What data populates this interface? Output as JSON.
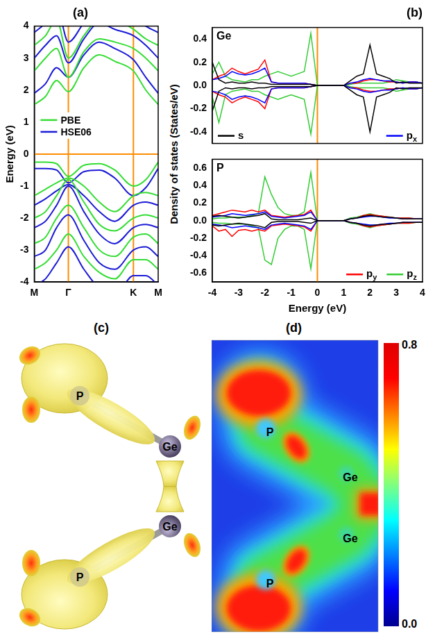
{
  "chart_data": [
    {
      "type": "line",
      "title": "(a)",
      "y_label": "Energy (eV)",
      "grid": false,
      "legend": "left",
      "x": [
        0,
        0.18,
        0.36,
        0.55,
        0.8,
        1.05,
        1.3,
        1.6,
        1.8,
        2.0
      ],
      "xlim": [
        0,
        2.0
      ],
      "xticks": [
        {
          "value": 0,
          "label": "M"
        },
        {
          "value": 0.55,
          "label": "Γ"
        },
        {
          "value": 1.6,
          "label": "K"
        },
        {
          "value": 2.0,
          "label": "M"
        }
      ],
      "ylim": [
        -4,
        4
      ],
      "yticks": [
        -4,
        -3,
        -2,
        -1,
        0,
        1,
        2,
        3,
        4
      ],
      "reference_lines": {
        "x": [
          0.55,
          1.6
        ],
        "y": [
          0
        ]
      },
      "series": [
        {
          "name": "PBE",
          "color": "#33dd33",
          "bands": [
            [
              1.55,
              1.8,
              2.3,
              1.95,
              2.7,
              3.1,
              2.9,
              2.6,
              2.0,
              1.55
            ],
            [
              2.6,
              3.0,
              3.3,
              2.4,
              3.2,
              3.6,
              3.5,
              3.3,
              3.0,
              2.6
            ],
            [
              3.4,
              3.7,
              4.2,
              3.0,
              3.7,
              4.2,
              4.2,
              3.9,
              3.6,
              3.4
            ],
            [
              -0.25,
              -0.25,
              -0.3,
              -0.7,
              -0.35,
              -0.3,
              -0.5,
              -1.0,
              -0.8,
              -0.25
            ],
            [
              -1.3,
              -1.1,
              -0.9,
              -0.75,
              -1.0,
              -1.5,
              -1.8,
              -1.3,
              -1.2,
              -1.3
            ],
            [
              -2.0,
              -1.8,
              -1.3,
              -0.8,
              -1.5,
              -2.2,
              -2.4,
              -2.0,
              -1.9,
              -2.0
            ],
            [
              -2.8,
              -2.6,
              -2.0,
              -1.6,
              -2.3,
              -3.0,
              -3.2,
              -2.6,
              -2.5,
              -2.8
            ],
            [
              -3.6,
              -3.4,
              -3.0,
              -2.5,
              -3.2,
              -3.7,
              -3.9,
              -3.3,
              -3.3,
              -3.6
            ]
          ]
        },
        {
          "name": "HSE06",
          "color": "#1a1ad6",
          "bands": [
            [
              1.9,
              2.2,
              2.7,
              2.4,
              3.1,
              3.5,
              3.3,
              2.95,
              2.4,
              1.9
            ],
            [
              3.0,
              3.4,
              3.7,
              2.85,
              3.6,
              4.1,
              3.9,
              3.7,
              3.4,
              3.0
            ],
            [
              3.8,
              4.1,
              4.6,
              3.5,
              4.1,
              4.6,
              4.6,
              4.3,
              4.0,
              3.8
            ],
            [
              -0.45,
              -0.45,
              -0.5,
              -0.9,
              -0.55,
              -0.5,
              -0.75,
              -1.3,
              -1.05,
              -0.45
            ],
            [
              -1.6,
              -1.4,
              -1.15,
              -0.95,
              -1.3,
              -1.8,
              -2.1,
              -1.6,
              -1.5,
              -1.6
            ],
            [
              -2.3,
              -2.1,
              -1.6,
              -1.0,
              -1.8,
              -2.5,
              -2.8,
              -2.3,
              -2.2,
              -2.3
            ],
            [
              -3.2,
              -3.0,
              -2.3,
              -1.9,
              -2.7,
              -3.4,
              -3.6,
              -3.0,
              -2.9,
              -3.2
            ],
            [
              -4.1,
              -3.9,
              -3.4,
              -2.9,
              -3.6,
              -4.2,
              -4.4,
              -3.8,
              -3.8,
              -4.1
            ]
          ]
        }
      ]
    },
    {
      "type": "line",
      "title": "(b)",
      "annotation": "Ge",
      "grid": false,
      "legend": "bottom",
      "tick_labels": "y",
      "x": [
        -4,
        -3.75,
        -3.5,
        -3.25,
        -3,
        -2.75,
        -2.5,
        -2.25,
        -2,
        -1.75,
        -1.5,
        -1.25,
        -1,
        -0.75,
        -0.5,
        -0.25,
        0,
        0.25,
        0.5,
        0.75,
        1,
        1.25,
        1.5,
        1.75,
        2,
        2.25,
        2.5,
        2.75,
        3,
        3.25,
        3.5,
        3.75,
        4
      ],
      "xlim": [
        -4,
        4
      ],
      "xticks": [
        -4,
        -3,
        -2,
        -1,
        0,
        1,
        2,
        3,
        4
      ],
      "ylim": [
        -0.5,
        0.5
      ],
      "yticks": [
        -0.4,
        -0.2,
        {
          "value": 0,
          "label": "0.0"
        },
        0.2,
        0.4
      ],
      "reference_lines": {
        "x": [
          0
        ]
      },
      "series": [
        {
          "name": "s",
          "color": "#000000",
          "values": [
            0.2,
            0.05,
            0.02,
            0.03,
            0.02,
            0.02,
            0.03,
            0.02,
            0.02,
            0.01,
            0.01,
            0.01,
            0.01,
            0.01,
            0.01,
            0.01,
            0,
            0,
            0,
            0,
            0,
            0.04,
            0.08,
            0.1,
            0.35,
            0.1,
            0.08,
            0.06,
            0.02,
            0.03,
            0.02,
            0.02,
            0.02
          ],
          "values_down": [
            -0.22,
            -0.05,
            -0.02,
            -0.03,
            -0.02,
            -0.02,
            -0.03,
            -0.02,
            -0.02,
            -0.01,
            -0.01,
            -0.01,
            -0.01,
            -0.01,
            -0.01,
            -0.01,
            0,
            0,
            0,
            0,
            0,
            -0.04,
            -0.08,
            -0.1,
            -0.4,
            -0.1,
            -0.08,
            -0.06,
            -0.02,
            -0.03,
            -0.02,
            -0.02,
            -0.02
          ]
        },
        {
          "name": "px",
          "color": "#0000ff",
          "values": [
            0.05,
            0.06,
            0.08,
            0.12,
            0.1,
            0.09,
            0.1,
            0.12,
            0.15,
            0.03,
            0.02,
            0.02,
            0.02,
            0.02,
            0.02,
            0.01,
            0,
            0,
            0,
            0,
            0,
            0.02,
            0.03,
            0.05,
            0.06,
            0.05,
            0.04,
            0.04,
            0.03,
            0.02,
            0.03,
            0.03,
            0.02
          ],
          "values_down": [
            -0.05,
            -0.06,
            -0.08,
            -0.12,
            -0.1,
            -0.09,
            -0.1,
            -0.12,
            -0.15,
            -0.03,
            -0.02,
            -0.02,
            -0.02,
            -0.02,
            -0.02,
            -0.01,
            0,
            0,
            0,
            0,
            0,
            -0.02,
            -0.03,
            -0.05,
            -0.06,
            -0.05,
            -0.04,
            -0.04,
            -0.03,
            -0.02,
            -0.03,
            -0.03,
            -0.02
          ]
        },
        {
          "name": "py",
          "color": "#ff0000",
          "values": [
            0.05,
            0.08,
            0.1,
            0.15,
            0.12,
            0.1,
            0.12,
            0.14,
            0.22,
            0.03,
            0.02,
            0.02,
            0.02,
            0.02,
            0.02,
            0.01,
            0,
            0,
            0,
            0,
            0,
            0.02,
            0.02,
            0.04,
            0.05,
            0.05,
            0.04,
            0.03,
            0.03,
            0.02,
            0.03,
            0.03,
            0.02
          ],
          "values_down": [
            -0.05,
            -0.08,
            -0.1,
            -0.15,
            -0.12,
            -0.1,
            -0.12,
            -0.14,
            -0.2,
            -0.03,
            -0.02,
            -0.02,
            -0.02,
            -0.02,
            -0.02,
            -0.01,
            0,
            0,
            0,
            0,
            0,
            -0.02,
            -0.02,
            -0.04,
            -0.05,
            -0.05,
            -0.04,
            -0.03,
            -0.03,
            -0.02,
            -0.03,
            -0.03,
            -0.02
          ]
        },
        {
          "name": "pz",
          "color": "#33cc33",
          "values": [
            0.1,
            0.2,
            0.08,
            0.05,
            0.04,
            0.03,
            0.05,
            0.05,
            0.08,
            0.1,
            0.12,
            0.1,
            0.08,
            0.1,
            0.12,
            0.45,
            0,
            0,
            0,
            0,
            0,
            0.01,
            0.02,
            0.02,
            0.02,
            0.02,
            0.02,
            0.03,
            0.05,
            0.04,
            0.03,
            0.03,
            0.02
          ],
          "values_down": [
            -0.1,
            -0.32,
            -0.08,
            -0.05,
            -0.04,
            -0.03,
            -0.05,
            -0.05,
            -0.08,
            -0.1,
            -0.12,
            -0.1,
            -0.08,
            -0.1,
            -0.12,
            -0.42,
            0,
            0,
            0,
            0,
            0,
            -0.01,
            -0.02,
            -0.02,
            -0.02,
            -0.02,
            -0.02,
            -0.03,
            -0.05,
            -0.04,
            -0.03,
            -0.03,
            -0.02
          ]
        }
      ]
    },
    {
      "type": "line",
      "annotation": "P",
      "x_label": "Energy (eV)",
      "grid": false,
      "legend": "bottom",
      "x": [
        -4,
        -3.75,
        -3.5,
        -3.25,
        -3,
        -2.75,
        -2.5,
        -2.25,
        -2,
        -1.75,
        -1.5,
        -1.25,
        -1,
        -0.75,
        -0.5,
        -0.25,
        0,
        0.25,
        0.5,
        0.75,
        1,
        1.25,
        1.5,
        1.75,
        2,
        2.25,
        2.5,
        2.75,
        3,
        3.25,
        3.5,
        3.75,
        4
      ],
      "xlim": [
        -4,
        4
      ],
      "xticks": [
        -4,
        -3,
        -2,
        -1,
        0,
        1,
        2,
        3,
        4
      ],
      "ylim": [
        -0.7,
        0.7
      ],
      "yticks": [
        -0.6,
        -0.4,
        -0.2,
        {
          "value": 0,
          "label": "0.0"
        },
        0.2,
        0.4,
        0.6
      ],
      "reference_lines": {
        "x": [
          0
        ]
      },
      "series": [
        {
          "name": "s",
          "color": "#000000",
          "values": [
            0.05,
            0.06,
            0.05,
            0.04,
            0.03,
            0.04,
            0.05,
            0.06,
            0.08,
            0.02,
            0.01,
            0.01,
            0.01,
            0.01,
            0.02,
            0.03,
            0,
            0,
            0,
            0,
            0,
            0.02,
            0.03,
            0.05,
            0.06,
            0.05,
            0.04,
            0.04,
            0.03,
            0.02,
            0.02,
            0.02,
            0.02
          ],
          "values_down": [
            -0.05,
            -0.06,
            -0.05,
            -0.04,
            -0.03,
            -0.04,
            -0.05,
            -0.06,
            -0.08,
            -0.02,
            -0.01,
            -0.01,
            -0.01,
            -0.01,
            -0.02,
            -0.03,
            0,
            0,
            0,
            0,
            0,
            -0.02,
            -0.03,
            -0.05,
            -0.06,
            -0.05,
            -0.04,
            -0.04,
            -0.03,
            -0.02,
            -0.02,
            -0.02,
            -0.02
          ]
        },
        {
          "name": "px",
          "color": "#0000ff",
          "values": [
            0.04,
            0.05,
            0.06,
            0.08,
            0.07,
            0.06,
            0.07,
            0.08,
            0.1,
            0.05,
            0.04,
            0.03,
            0.04,
            0.05,
            0.06,
            0.1,
            0,
            0,
            0,
            0,
            0,
            0.02,
            0.03,
            0.04,
            0.05,
            0.05,
            0.04,
            0.03,
            0.03,
            0.02,
            0.02,
            0.02,
            0.02
          ],
          "values_down": [
            -0.04,
            -0.05,
            -0.06,
            -0.08,
            -0.07,
            -0.06,
            -0.07,
            -0.08,
            -0.1,
            -0.05,
            -0.04,
            -0.03,
            -0.04,
            -0.05,
            -0.06,
            -0.1,
            0,
            0,
            0,
            0,
            0,
            -0.02,
            -0.03,
            -0.04,
            -0.05,
            -0.05,
            -0.04,
            -0.03,
            -0.03,
            -0.02,
            -0.02,
            -0.02,
            -0.02
          ]
        },
        {
          "name": "py",
          "color": "#ff0000",
          "values": [
            0.06,
            0.08,
            0.1,
            0.12,
            0.11,
            0.1,
            0.12,
            0.1,
            0.12,
            0.06,
            0.05,
            0.04,
            0.05,
            0.06,
            0.07,
            0.12,
            0,
            0,
            0,
            0,
            0,
            0.02,
            0.03,
            0.06,
            0.07,
            0.06,
            0.05,
            0.04,
            0.03,
            0.03,
            0.03,
            0.02,
            0.02
          ],
          "values_down": [
            -0.06,
            -0.12,
            -0.1,
            -0.18,
            -0.11,
            -0.1,
            -0.12,
            -0.1,
            -0.12,
            -0.06,
            -0.05,
            -0.04,
            -0.05,
            -0.06,
            -0.07,
            -0.12,
            0,
            0,
            0,
            0,
            0,
            -0.02,
            -0.03,
            -0.06,
            -0.07,
            -0.06,
            -0.05,
            -0.04,
            -0.03,
            -0.03,
            -0.03,
            -0.02,
            -0.02
          ]
        },
        {
          "name": "pz",
          "color": "#33cc33",
          "values": [
            0.02,
            0.03,
            0.03,
            0.04,
            0.04,
            0.04,
            0.06,
            0.08,
            0.5,
            0.3,
            0.15,
            0.08,
            0.06,
            0.06,
            0.1,
            0.55,
            0,
            0,
            0,
            0,
            0,
            0.03,
            0.04,
            0.06,
            0.08,
            0.06,
            0.05,
            0.04,
            0.03,
            0.03,
            0.03,
            0.02,
            0.02
          ],
          "values_down": [
            -0.02,
            -0.03,
            -0.03,
            -0.04,
            -0.04,
            -0.04,
            -0.06,
            -0.08,
            -0.45,
            -0.5,
            -0.2,
            -0.1,
            -0.06,
            -0.06,
            -0.1,
            -0.55,
            0,
            0,
            0,
            0,
            0,
            -0.03,
            -0.04,
            -0.06,
            -0.08,
            -0.06,
            -0.05,
            -0.04,
            -0.03,
            -0.03,
            -0.03,
            -0.02,
            -0.02
          ]
        }
      ]
    }
  ],
  "panels": {
    "dos_y_label": "Density of states (States/eV)",
    "c": {
      "label": "(c)",
      "atoms": [
        "P",
        "Ge",
        "Ge",
        "P"
      ]
    },
    "d": {
      "label": "(d)",
      "atoms": [
        "P",
        "Ge",
        "Ge",
        "P"
      ],
      "colorbar": {
        "range": [
          0,
          0.8
        ],
        "ticks": [
          {
            "value": 0,
            "label": "0.0"
          },
          0.8
        ]
      }
    }
  }
}
